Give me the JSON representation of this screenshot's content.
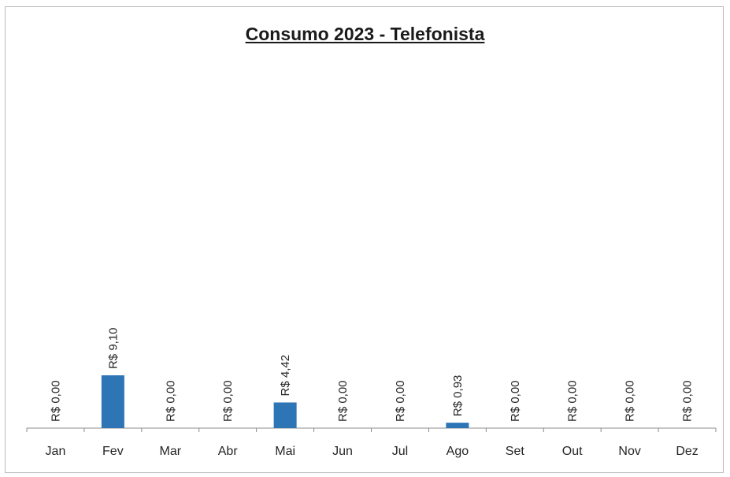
{
  "chart_data": {
    "type": "bar",
    "title": "Consumo 2023 - Telefonista",
    "xlabel": "",
    "ylabel": "",
    "categories": [
      "Jan",
      "Fev",
      "Mar",
      "Abr",
      "Mai",
      "Jun",
      "Jul",
      "Ago",
      "Set",
      "Out",
      "Nov",
      "Dez"
    ],
    "values": [
      0,
      9.1,
      0,
      0,
      4.42,
      0,
      0,
      0.93,
      0,
      0,
      0,
      0
    ],
    "data_labels": [
      "R$ 0,00",
      "R$ 9,10",
      "R$ 0,00",
      "R$ 0,00",
      "R$ 4,42",
      "R$ 0,00",
      "R$ 0,00",
      "R$ 0,93",
      "R$ 0,00",
      "R$ 0,00",
      "R$ 0,00",
      "R$ 0,00"
    ],
    "ylim": [
      0,
      65
    ],
    "grid": false,
    "legend": "none",
    "bar_color": "#2e75b6"
  }
}
